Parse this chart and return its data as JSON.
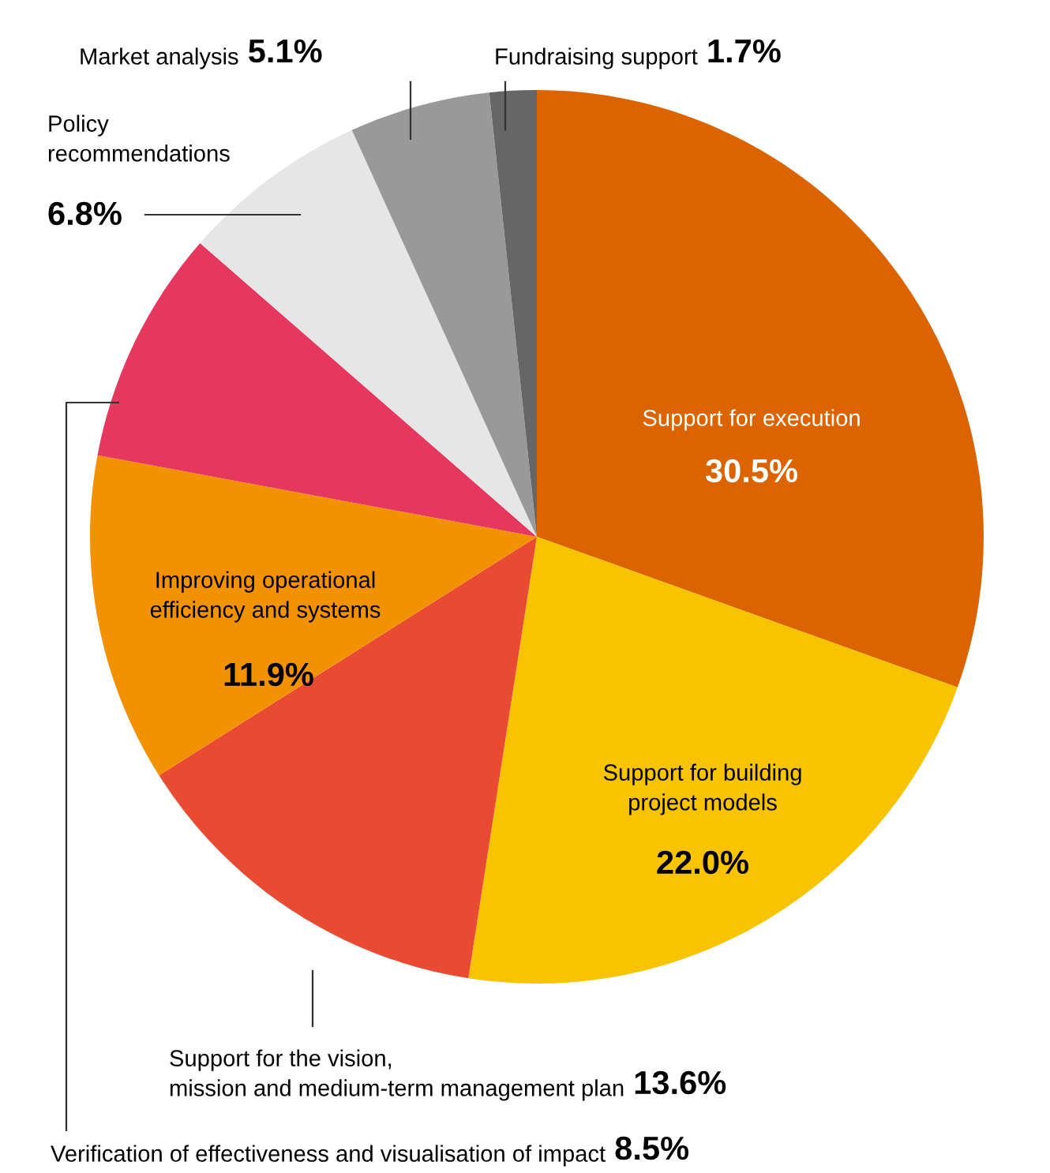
{
  "chart_data": {
    "type": "pie",
    "categories": [
      "Support for execution",
      "Support for building\nproject models",
      "Support for the vision,\nmission and medium-term management plan",
      "Improving operational\nefficiency and systems",
      "Verification of effectiveness and visualisation of impact",
      "Policy\nrecommendations",
      "Market analysis",
      "Fundraising support"
    ],
    "values": [
      30.5,
      22.0,
      13.6,
      11.9,
      8.5,
      6.8,
      5.1,
      1.7
    ],
    "colors": [
      "#db6400",
      "#f8c300",
      "#e84a32",
      "#f39200",
      "#e6375f",
      "#e6e6e6",
      "#999999",
      "#666666"
    ],
    "value_labels": [
      "30.5%",
      "22.0%",
      "13.6%",
      "11.9%",
      "8.5%",
      "6.8%",
      "5.1%",
      "1.7%"
    ]
  }
}
